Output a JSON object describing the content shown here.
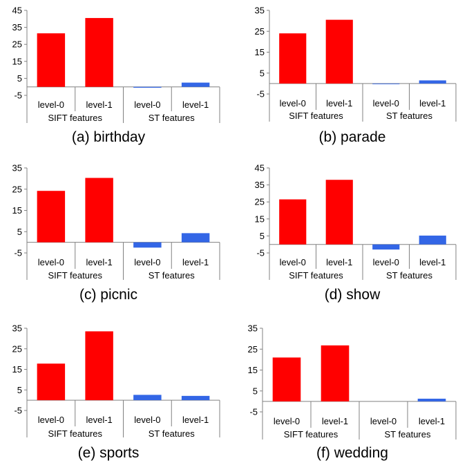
{
  "colors": {
    "sift": "#ff0000",
    "st": "#3366e6",
    "axis": "#808080"
  },
  "chart_data": [
    {
      "type": "bar",
      "caption": "(a) birthday",
      "yticks": [
        -5,
        5,
        15,
        25,
        35,
        45
      ],
      "ylim": [
        -5,
        45
      ],
      "groups": [
        {
          "name": "SIFT features",
          "categories": [
            "level-0",
            "level-1"
          ],
          "values": [
            31.5,
            40.5
          ]
        },
        {
          "name": "ST features",
          "categories": [
            "level-0",
            "level-1"
          ],
          "values": [
            -0.5,
            2.5
          ]
        }
      ]
    },
    {
      "type": "bar",
      "caption": "(b) parade",
      "yticks": [
        -5,
        5,
        15,
        25,
        35
      ],
      "ylim": [
        -5,
        35
      ],
      "groups": [
        {
          "name": "SIFT features",
          "categories": [
            "level-0",
            "level-1"
          ],
          "values": [
            24,
            30.5
          ]
        },
        {
          "name": "ST features",
          "categories": [
            "level-0",
            "level-1"
          ],
          "values": [
            -0.3,
            1.5
          ]
        }
      ]
    },
    {
      "type": "bar",
      "caption": "(c) picnic",
      "yticks": [
        -5,
        5,
        15,
        25,
        35
      ],
      "ylim": [
        -5,
        35
      ],
      "groups": [
        {
          "name": "SIFT features",
          "categories": [
            "level-0",
            "level-1"
          ],
          "values": [
            24.2,
            30.3
          ]
        },
        {
          "name": "ST features",
          "categories": [
            "level-0",
            "level-1"
          ],
          "values": [
            -2.5,
            4.3
          ]
        }
      ]
    },
    {
      "type": "bar",
      "caption": "(d) show",
      "yticks": [
        -5,
        5,
        15,
        25,
        35,
        45
      ],
      "ylim": [
        -5,
        45
      ],
      "groups": [
        {
          "name": "SIFT features",
          "categories": [
            "level-0",
            "level-1"
          ],
          "values": [
            26.5,
            38
          ]
        },
        {
          "name": "ST features",
          "categories": [
            "level-0",
            "level-1"
          ],
          "values": [
            -3,
            5.2
          ]
        }
      ]
    },
    {
      "type": "bar",
      "caption": "(e) sports",
      "yticks": [
        -5,
        5,
        15,
        25,
        35
      ],
      "ylim": [
        -5,
        35
      ],
      "groups": [
        {
          "name": "SIFT features",
          "categories": [
            "level-0",
            "level-1"
          ],
          "values": [
            17.8,
            33.5
          ]
        },
        {
          "name": "ST features",
          "categories": [
            "level-0",
            "level-1"
          ],
          "values": [
            2.6,
            2.1
          ]
        }
      ]
    },
    {
      "type": "bar",
      "caption": "(f) wedding",
      "yticks": [
        -5,
        5,
        15,
        25,
        35
      ],
      "ylim": [
        -5,
        35
      ],
      "groups": [
        {
          "name": "SIFT features",
          "categories": [
            "level-0",
            "level-1"
          ],
          "values": [
            21,
            26.8
          ]
        },
        {
          "name": "ST features",
          "categories": [
            "level-0",
            "level-1"
          ],
          "values": [
            0,
            1.3
          ]
        }
      ]
    }
  ]
}
